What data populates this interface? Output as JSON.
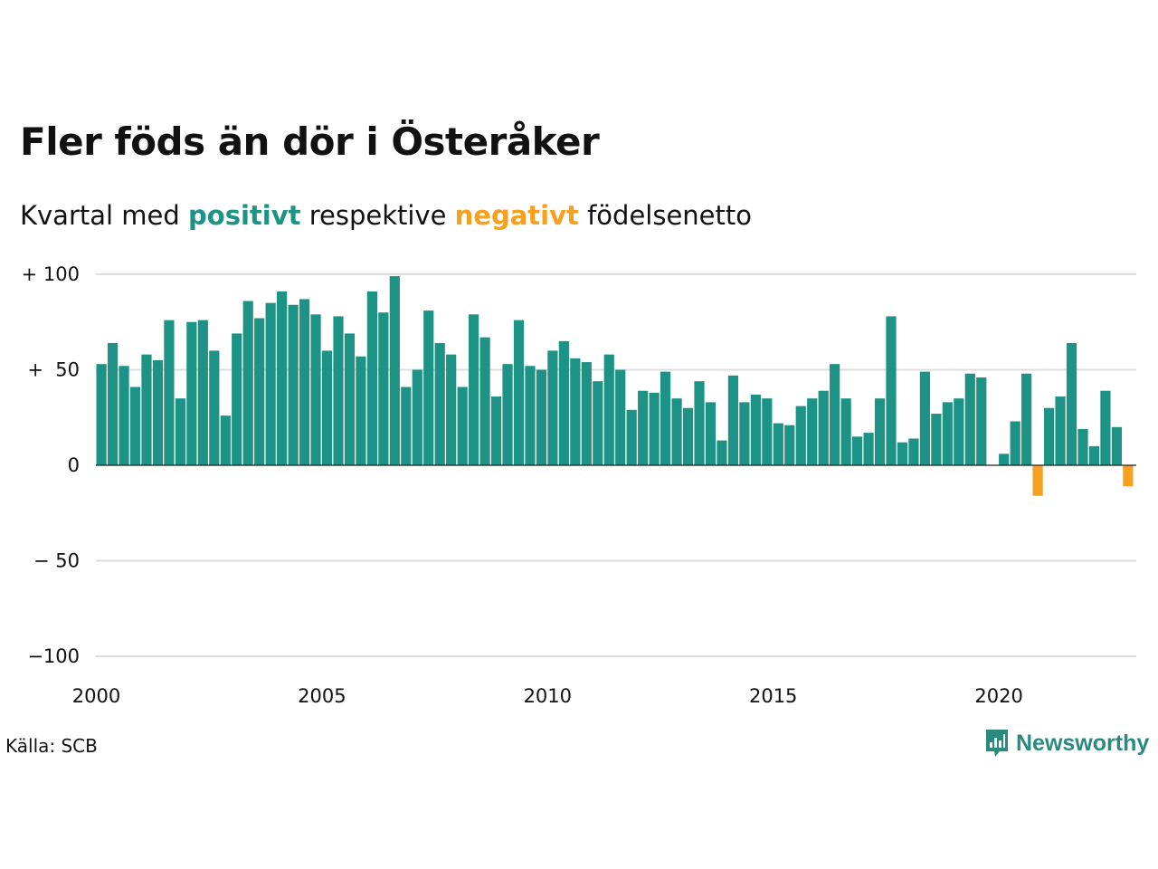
{
  "title": "Fler föds än dör i Österåker",
  "subtitle": {
    "prefix": "Kvartal med",
    "positive_word": "positivt",
    "middle": "respektive",
    "negative_word": "negativt",
    "suffix": "födelsenetto"
  },
  "colors": {
    "positive": "#1c9384",
    "negative": "#f5a01e",
    "grid": "#dddddd",
    "zero_line": "#222222"
  },
  "source": "Källa: SCB",
  "logo": {
    "text": "Newsworthy",
    "icon": "newsworthy-bar-icon"
  },
  "chart_data": {
    "type": "bar",
    "x_start": "2000 Q1",
    "frequency": "quarterly",
    "x_ticks": [
      "2000",
      "2005",
      "2010",
      "2015",
      "2020"
    ],
    "y_ticks": [
      {
        "value": 100,
        "label": "+ 100"
      },
      {
        "value": 50,
        "label": "+  50"
      },
      {
        "value": 0,
        "label": "0"
      },
      {
        "value": -50,
        "label": "− 50"
      },
      {
        "value": -100,
        "label": "−100"
      }
    ],
    "ylim": [
      -100,
      100
    ],
    "grid": true,
    "values": [
      53,
      64,
      52,
      41,
      58,
      55,
      76,
      35,
      75,
      76,
      60,
      26,
      69,
      86,
      77,
      85,
      91,
      84,
      87,
      79,
      60,
      78,
      69,
      57,
      91,
      80,
      99,
      41,
      50,
      81,
      64,
      58,
      41,
      79,
      67,
      36,
      53,
      76,
      52,
      50,
      60,
      65,
      56,
      54,
      44,
      58,
      50,
      29,
      39,
      38,
      49,
      35,
      30,
      44,
      33,
      13,
      47,
      33,
      37,
      35,
      22,
      21,
      31,
      35,
      39,
      53,
      35,
      15,
      17,
      35,
      78,
      12,
      14,
      49,
      27,
      33,
      35,
      48,
      46,
      0,
      6,
      23,
      48,
      -16,
      30,
      36,
      64,
      19,
      10,
      39,
      20,
      -11
    ]
  }
}
